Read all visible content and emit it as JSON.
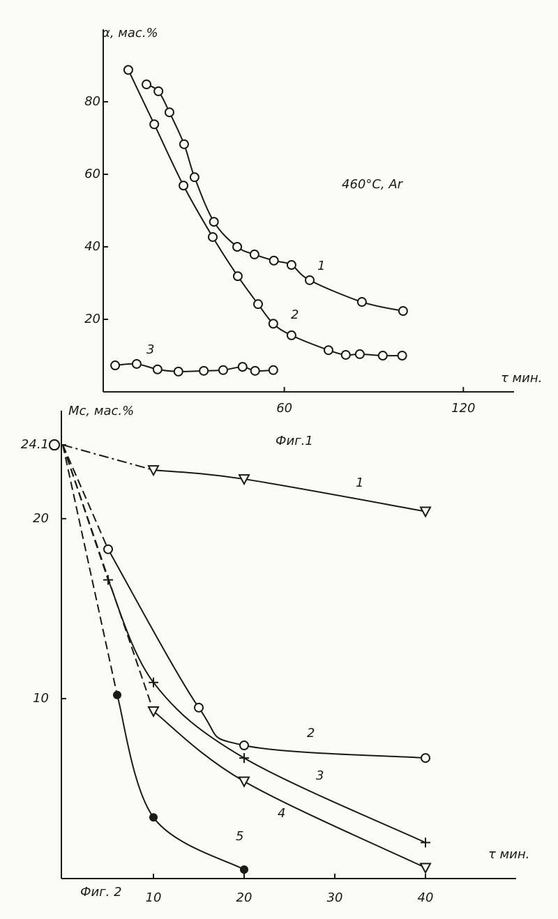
{
  "chart_data": [
    {
      "type": "line",
      "title": "Фиг.1",
      "ylabel": "α, мас.%",
      "xlabel": "τ мин.",
      "annotation": "460°C, Ar",
      "xlim": [
        0,
        137
      ],
      "ylim": [
        0,
        100
      ],
      "xticks": [
        60,
        120
      ],
      "yticks": [
        20,
        40,
        60,
        80
      ],
      "dashed_start": false,
      "series": [
        {
          "name": "1",
          "marker": "circle",
          "color": "#1a1a1a",
          "x": [
            13.8,
            17.8,
            21.5,
            26.4,
            29.9,
            36.4,
            44.2,
            50,
            56.5,
            62.4,
            68.5,
            86,
            99.8
          ],
          "values": [
            84.8,
            82.9,
            77.1,
            68.3,
            59.2,
            46.9,
            40,
            37.9,
            36.2,
            35,
            30.8,
            24.8,
            22.3
          ]
        },
        {
          "name": "2",
          "marker": "circle",
          "color": "#1a1a1a",
          "x": [
            7.7,
            16.4,
            26.2,
            36,
            44.4,
            51.2,
            56.3,
            62.4,
            74.8,
            80.6,
            85.3,
            93,
            99.5
          ],
          "values": [
            88.8,
            73.8,
            56.9,
            42.7,
            31.9,
            24.2,
            18.8,
            15.6,
            11.5,
            10.2,
            10.4,
            10,
            10
          ]
        },
        {
          "name": "3",
          "marker": "circle",
          "color": "#1a1a1a",
          "x": [
            3.3,
            10.5,
            17.5,
            24.5,
            33,
            39.5,
            46,
            50.2,
            56.3
          ],
          "values": [
            7.3,
            7.7,
            6.2,
            5.6,
            5.8,
            6,
            6.9,
            5.8,
            6
          ]
        }
      ]
    },
    {
      "type": "line",
      "title": "Фиг. 2",
      "ylabel": "Mc, мас.%",
      "xlabel": "τ мин.",
      "xlim": [
        0,
        50
      ],
      "ylim": [
        0,
        26
      ],
      "xticks": [
        10,
        20,
        30,
        40
      ],
      "yticks": [
        10,
        20,
        24.1
      ],
      "dashed_start": true,
      "series": [
        {
          "name": "1",
          "marker": "triangle",
          "color": "#1a1a1a",
          "x": [
            0,
            10,
            20,
            40
          ],
          "values": [
            24.1,
            22.7,
            22.2,
            20.4
          ]
        },
        {
          "name": "2",
          "marker": "circle",
          "color": "#1a1a1a",
          "x": [
            0,
            5,
            15,
            20,
            40
          ],
          "values": [
            24.1,
            18.3,
            9.5,
            7.4,
            6.7
          ]
        },
        {
          "name": "3",
          "marker": "plus",
          "color": "#1a1a1a",
          "x": [
            0,
            5,
            10,
            20,
            40
          ],
          "values": [
            24.1,
            16.6,
            10.9,
            6.7,
            2.0
          ]
        },
        {
          "name": "4",
          "marker": "triangle",
          "color": "#1a1a1a",
          "x": [
            0,
            10,
            20,
            40
          ],
          "values": [
            24.1,
            9.3,
            5.4,
            0.6
          ]
        },
        {
          "name": "5",
          "marker": "dot",
          "color": "#1a1a1a",
          "x": [
            0,
            6,
            10,
            20
          ],
          "values": [
            24.1,
            10.2,
            3.4,
            0.5
          ]
        }
      ]
    }
  ]
}
